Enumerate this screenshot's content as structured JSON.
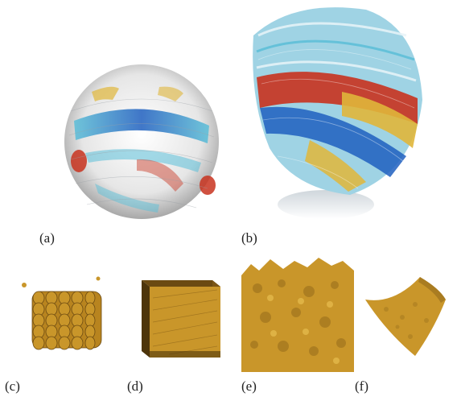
{
  "figure": {
    "panels": [
      {
        "id": "a",
        "caption": "(a)",
        "content": "sphere flow-line rendering, blue/red/yellow bands"
      },
      {
        "id": "b",
        "caption": "(b)",
        "content": "3D streamline hemisphere with blue/red/yellow tubes"
      },
      {
        "id": "c",
        "caption": "(c)",
        "content": "golden isosurface lattice"
      },
      {
        "id": "d",
        "caption": "(d)",
        "content": "golden cube with line texture"
      },
      {
        "id": "e",
        "caption": "(e)",
        "content": "golden turbulent isosurface"
      },
      {
        "id": "f",
        "caption": "(f)",
        "content": "golden curved sheet"
      }
    ],
    "colors": {
      "blue": "#1f5fbf",
      "cyan": "#5bbfd8",
      "red": "#c8321e",
      "yellow": "#e0b63a",
      "gold": "#c9962a",
      "gold_dark": "#6b4a12"
    }
  }
}
